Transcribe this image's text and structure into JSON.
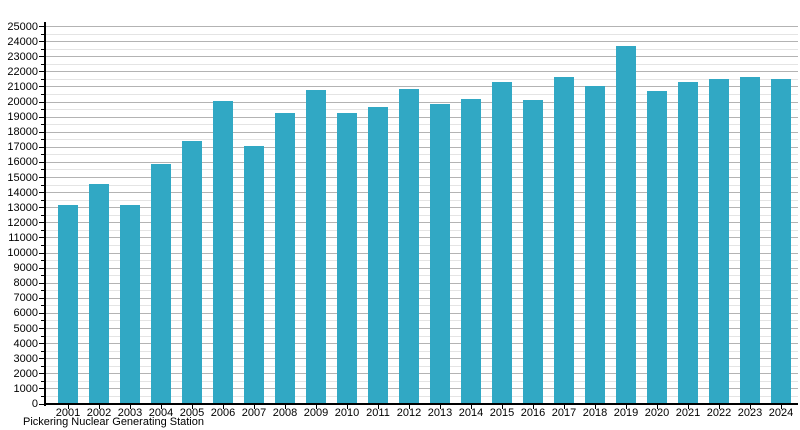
{
  "chart_data": {
    "type": "bar",
    "title": "",
    "caption": "Pickering Nuclear Generating Station",
    "xlabel": "",
    "ylabel": "",
    "categories": [
      "2001",
      "2002",
      "2003",
      "2004",
      "2005",
      "2006",
      "2007",
      "2008",
      "2009",
      "2010",
      "2011",
      "2012",
      "2013",
      "2014",
      "2015",
      "2016",
      "2017",
      "2018",
      "2019",
      "2020",
      "2021",
      "2022",
      "2023",
      "2024"
    ],
    "values": [
      13200,
      14600,
      13200,
      15900,
      17450,
      20050,
      17100,
      19300,
      20800,
      19300,
      19700,
      20850,
      19900,
      20200,
      21350,
      20150,
      21650,
      21050,
      23700,
      20750,
      21300,
      21500,
      21650,
      21500
    ],
    "ylim": [
      0,
      25000
    ],
    "y_tick_step": 1000,
    "y_minor_step": 500,
    "grid": true,
    "legend_position": "none",
    "bar_color": "#31a8c4",
    "major_grid_color": "#b3b3b3",
    "minor_grid_color": "#e4e4e4",
    "axis_color": "#000000",
    "text_color": "#000000"
  }
}
